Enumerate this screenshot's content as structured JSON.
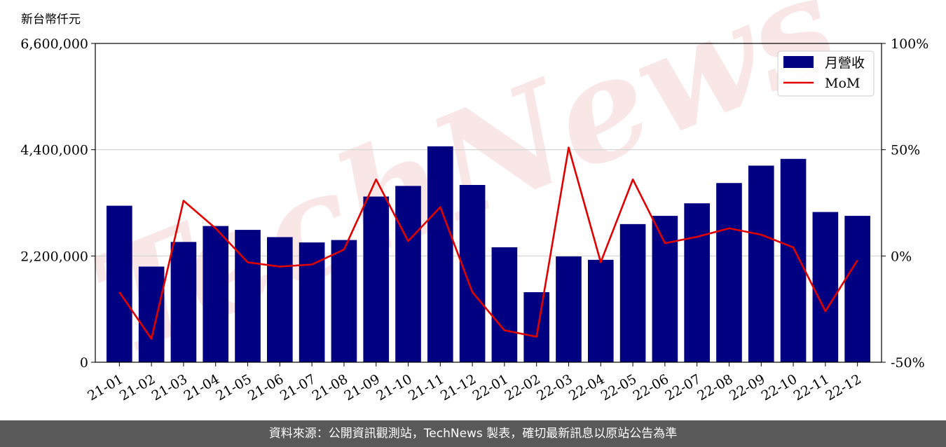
{
  "chart_data": {
    "type": "bar",
    "y_unit_label": "新台幣仟元",
    "categories": [
      "21-01",
      "21-02",
      "21-03",
      "21-04",
      "21-05",
      "21-06",
      "21-07",
      "21-08",
      "21-09",
      "21-10",
      "21-11",
      "21-12",
      "22-01",
      "22-02",
      "22-03",
      "22-04",
      "22-05",
      "22-06",
      "22-07",
      "22-08",
      "22-09",
      "22-10",
      "22-11",
      "22-12"
    ],
    "series": [
      {
        "name": "月營收",
        "axis": "left",
        "type": "bar",
        "color": "#000080",
        "values": [
          3240000,
          1980000,
          2490000,
          2820000,
          2740000,
          2590000,
          2480000,
          2530000,
          3430000,
          3650000,
          4470000,
          3670000,
          2380000,
          1450000,
          2190000,
          2120000,
          2860000,
          3030000,
          3290000,
          3710000,
          4070000,
          4210000,
          3110000,
          3030000
        ]
      },
      {
        "name": "MoM",
        "axis": "right",
        "type": "line",
        "color": "#e00000",
        "values": [
          -17,
          -39,
          26,
          13,
          -3,
          -5,
          -4,
          3,
          36,
          7,
          23,
          -17,
          -35,
          -38,
          51,
          -3,
          36,
          6,
          9,
          13,
          10,
          4,
          -26,
          -2
        ]
      }
    ],
    "y_left": {
      "min": 0,
      "max": 6600000,
      "ticks": [
        0,
        2200000,
        4400000,
        6600000
      ],
      "tick_labels": [
        "0",
        "2,200,000",
        "4,400,000",
        "6,600,000"
      ]
    },
    "y_right": {
      "min": -50,
      "max": 100,
      "ticks": [
        -50,
        0,
        50,
        100
      ],
      "tick_labels": [
        "-50%",
        "0%",
        "50%",
        "100%"
      ]
    },
    "grid": "horizontal",
    "legend": "top-right",
    "watermark": "TechNews"
  },
  "footer_text": "資料來源：公開資訊觀測站，TechNews 製表，確切最新訊息以原站公告為準"
}
